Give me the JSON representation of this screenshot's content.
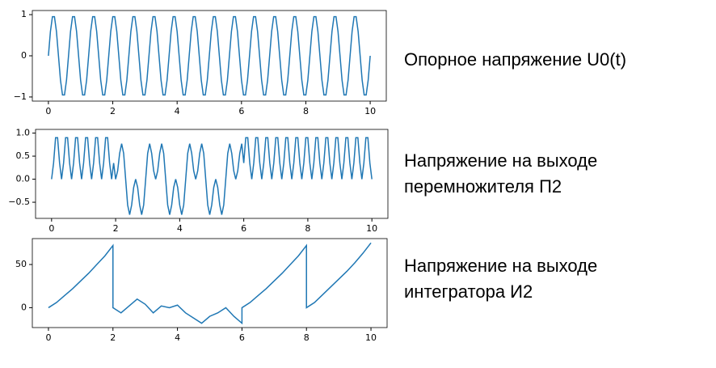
{
  "chart_data": [
    {
      "type": "line",
      "annotation_lines": [
        "Опорное напряжение U0(t)"
      ],
      "color": "#1f77b4",
      "xlim": [
        -0.5,
        10.5
      ],
      "ylim": [
        -1.1,
        1.1
      ],
      "xticks": [
        0,
        2,
        4,
        6,
        8,
        10
      ],
      "yticks": [
        {
          "value": -1,
          "label": "−1"
        },
        0,
        1
      ],
      "x": [
        0,
        0.0625,
        0.125,
        0.1875,
        0.25,
        0.3125,
        0.375,
        0.4375,
        0.5,
        0.5625,
        0.625,
        0.6875,
        0.75,
        0.8125,
        0.875,
        0.9375,
        1,
        1.0625,
        1.125,
        1.1875,
        1.25,
        1.3125,
        1.375,
        1.4375,
        1.5,
        1.5625,
        1.625,
        1.6875,
        1.75,
        1.8125,
        1.875,
        1.9375,
        2,
        2.0625,
        2.125,
        2.1875,
        2.25,
        2.3125,
        2.375,
        2.4375,
        2.5,
        2.5625,
        2.625,
        2.6875,
        2.75,
        2.8125,
        2.875,
        2.9375,
        3,
        3.0625,
        3.125,
        3.1875,
        3.25,
        3.3125,
        3.375,
        3.4375,
        3.5,
        3.5625,
        3.625,
        3.6875,
        3.75,
        3.8125,
        3.875,
        3.9375,
        4,
        4.0625,
        4.125,
        4.1875,
        4.25,
        4.3125,
        4.375,
        4.4375,
        4.5,
        4.5625,
        4.625,
        4.6875,
        4.75,
        4.8125,
        4.875,
        4.9375,
        5,
        5.0625,
        5.125,
        5.1875,
        5.25,
        5.3125,
        5.375,
        5.4375,
        5.5,
        5.5625,
        5.625,
        5.6875,
        5.75,
        5.8125,
        5.875,
        5.9375,
        6,
        6.0625,
        6.125,
        6.1875,
        6.25,
        6.3125,
        6.375,
        6.4375,
        6.5,
        6.5625,
        6.625,
        6.6875,
        6.75,
        6.8125,
        6.875,
        6.9375,
        7,
        7.0625,
        7.125,
        7.1875,
        7.25,
        7.3125,
        7.375,
        7.4375,
        7.5,
        7.5625,
        7.625,
        7.6875,
        7.75,
        7.8125,
        7.875,
        7.9375,
        8,
        8.0625,
        8.125,
        8.1875,
        8.25,
        8.3125,
        8.375,
        8.4375,
        8.5,
        8.5625,
        8.625,
        8.6875,
        8.75,
        8.8125,
        8.875,
        8.9375,
        9,
        9.0625,
        9.125,
        9.1875,
        9.25,
        9.3125,
        9.375,
        9.4375,
        9.5,
        9.5625,
        9.625,
        9.6875,
        9.75,
        9.8125,
        9.875,
        9.9375,
        10
      ],
      "values": [
        0,
        0.59,
        0.95,
        0.95,
        0.59,
        0,
        -0.59,
        -0.95,
        -0.95,
        -0.59,
        0,
        0.59,
        0.95,
        0.95,
        0.59,
        0,
        -0.59,
        -0.95,
        -0.95,
        -0.59,
        0,
        0.59,
        0.95,
        0.95,
        0.59,
        0,
        -0.59,
        -0.95,
        -0.95,
        -0.59,
        0,
        0.59,
        0.95,
        0.95,
        0.59,
        0,
        -0.59,
        -0.95,
        -0.95,
        -0.59,
        0,
        0.59,
        0.95,
        0.95,
        0.59,
        0,
        -0.59,
        -0.95,
        -0.95,
        -0.59,
        0,
        0.59,
        0.95,
        0.95,
        0.59,
        0,
        -0.59,
        -0.95,
        -0.95,
        -0.59,
        0,
        0.59,
        0.95,
        0.95,
        0.59,
        0,
        -0.59,
        -0.95,
        -0.95,
        -0.59,
        0,
        0.59,
        0.95,
        0.95,
        0.59,
        0,
        -0.59,
        -0.95,
        -0.95,
        -0.59,
        0,
        0.59,
        0.95,
        0.95,
        0.59,
        0,
        -0.59,
        -0.95,
        -0.95,
        -0.59,
        0,
        0.59,
        0.95,
        0.95,
        0.59,
        0,
        -0.59,
        -0.95,
        -0.95,
        -0.59,
        0,
        0.59,
        0.95,
        0.95,
        0.59,
        0,
        -0.59,
        -0.95,
        -0.95,
        -0.59,
        0,
        0.59,
        0.95,
        0.95,
        0.59,
        0,
        -0.59,
        -0.95,
        -0.95,
        -0.59,
        0,
        0.59,
        0.95,
        0.95,
        0.59,
        0,
        -0.59,
        -0.95,
        -0.95,
        -0.59,
        0,
        0.59,
        0.95,
        0.95,
        0.59,
        0,
        -0.59,
        -0.95,
        -0.95,
        -0.59,
        0,
        0.59,
        0.95,
        0.95,
        0.59,
        0,
        -0.59,
        -0.95,
        -0.95,
        -0.59,
        0,
        0.59,
        0.95,
        0.95,
        0.59,
        0,
        -0.59,
        -0.95,
        -0.95,
        -0.59,
        0
      ]
    },
    {
      "type": "line",
      "annotation_lines": [
        "Напряжение на выходе",
        "перемножителя П2"
      ],
      "color": "#1f77b4",
      "xlim": [
        -0.5,
        10.5
      ],
      "ylim": [
        -0.85,
        1.08
      ],
      "xticks": [
        0,
        2,
        4,
        6,
        8,
        10
      ],
      "yticks": [
        {
          "value": -0.5,
          "label": "−0.5"
        },
        {
          "value": 0,
          "label": "0.0"
        },
        0.5,
        {
          "value": 1,
          "label": "1.0"
        }
      ],
      "x": [
        0,
        0.0625,
        0.125,
        0.1875,
        0.25,
        0.3125,
        0.375,
        0.4375,
        0.5,
        0.5625,
        0.625,
        0.6875,
        0.75,
        0.8125,
        0.875,
        0.9375,
        1,
        1.0625,
        1.125,
        1.1875,
        1.25,
        1.3125,
        1.375,
        1.4375,
        1.5,
        1.5625,
        1.625,
        1.6875,
        1.75,
        1.8125,
        1.875,
        1.9375,
        2,
        2.0625,
        2.125,
        2.1875,
        2.25,
        2.3125,
        2.375,
        2.4375,
        2.5,
        2.5625,
        2.625,
        2.6875,
        2.75,
        2.8125,
        2.875,
        2.9375,
        3,
        3.0625,
        3.125,
        3.1875,
        3.25,
        3.3125,
        3.375,
        3.4375,
        3.5,
        3.5625,
        3.625,
        3.6875,
        3.75,
        3.8125,
        3.875,
        3.9375,
        4,
        4.0625,
        4.125,
        4.1875,
        4.25,
        4.3125,
        4.375,
        4.4375,
        4.5,
        4.5625,
        4.625,
        4.6875,
        4.75,
        4.8125,
        4.875,
        4.9375,
        5,
        5.0625,
        5.125,
        5.1875,
        5.25,
        5.3125,
        5.375,
        5.4375,
        5.5,
        5.5625,
        5.625,
        5.6875,
        5.75,
        5.8125,
        5.875,
        5.9375,
        6,
        6.0625,
        6.125,
        6.1875,
        6.25,
        6.3125,
        6.375,
        6.4375,
        6.5,
        6.5625,
        6.625,
        6.6875,
        6.75,
        6.8125,
        6.875,
        6.9375,
        7,
        7.0625,
        7.125,
        7.1875,
        7.25,
        7.3125,
        7.375,
        7.4375,
        7.5,
        7.5625,
        7.625,
        7.6875,
        7.75,
        7.8125,
        7.875,
        7.9375,
        8,
        8.0625,
        8.125,
        8.1875,
        8.25,
        8.3125,
        8.375,
        8.4375,
        8.5,
        8.5625,
        8.625,
        8.6875,
        8.75,
        8.8125,
        8.875,
        8.9375,
        9,
        9.0625,
        9.125,
        9.1875,
        9.25,
        9.3125,
        9.375,
        9.4375,
        9.5,
        9.5625,
        9.625,
        9.6875,
        9.75,
        9.8125,
        9.875,
        9.9375,
        10
      ],
      "values": [
        0,
        0.35,
        0.9,
        0.9,
        0.35,
        0,
        0.35,
        0.9,
        0.9,
        0.35,
        0,
        0.35,
        0.9,
        0.9,
        0.35,
        0,
        0.35,
        0.9,
        0.9,
        0.35,
        0,
        0.35,
        0.9,
        0.9,
        0.35,
        0,
        0.35,
        0.9,
        0.9,
        0.35,
        0,
        0.35,
        0,
        0.18,
        0.56,
        0.77,
        0.56,
        0,
        -0.56,
        -0.77,
        -0.56,
        -0.18,
        0,
        -0.18,
        -0.56,
        -0.77,
        -0.56,
        0,
        0.56,
        0.77,
        0.56,
        0.18,
        0,
        0.18,
        0.56,
        0.77,
        0.56,
        0,
        -0.56,
        -0.77,
        -0.56,
        -0.18,
        0,
        -0.18,
        -0.56,
        -0.77,
        -0.56,
        0,
        0.56,
        0.77,
        0.56,
        0.18,
        0,
        0.18,
        0.56,
        0.77,
        0.56,
        0,
        -0.56,
        -0.77,
        -0.56,
        -0.18,
        0,
        -0.18,
        -0.56,
        -0.77,
        -0.56,
        0,
        0.56,
        0.77,
        0.56,
        0.18,
        0,
        0.18,
        0.56,
        0.77,
        0.35,
        0.9,
        0.9,
        0.35,
        0,
        0.35,
        0.9,
        0.9,
        0.35,
        0,
        0.35,
        0.9,
        0.9,
        0.35,
        0,
        0.35,
        0.9,
        0.9,
        0.35,
        0,
        0.35,
        0.9,
        0.9,
        0.35,
        0,
        0.35,
        0.9,
        0.9,
        0.35,
        0,
        0.35,
        0.9,
        0.9,
        0.35,
        0,
        0.35,
        0.9,
        0.9,
        0.35,
        0,
        0.35,
        0.9,
        0.9,
        0.35,
        0,
        0.35,
        0.9,
        0.9,
        0.35,
        0,
        0.35,
        0.9,
        0.9,
        0.35,
        0,
        0.35,
        0.9,
        0.9,
        0.35,
        0,
        0.35,
        0.9,
        0.9,
        0.35,
        0
      ]
    },
    {
      "type": "line",
      "annotation_lines": [
        "Напряжение на выходе",
        "интегратора И2"
      ],
      "color": "#1f77b4",
      "xlim": [
        -0.5,
        10.5
      ],
      "ylim": [
        -23,
        80
      ],
      "xticks": [
        0,
        2,
        4,
        6,
        8,
        10
      ],
      "yticks": [
        0,
        50
      ],
      "x": [
        0,
        0.25,
        0.5,
        0.75,
        1,
        1.25,
        1.5,
        1.75,
        2,
        2,
        2.25,
        2.5,
        2.75,
        3,
        3.25,
        3.5,
        3.75,
        4,
        4.25,
        4.5,
        4.75,
        5,
        5.25,
        5.5,
        5.75,
        6,
        6,
        6.25,
        6.5,
        6.75,
        7,
        7.25,
        7.5,
        7.75,
        8,
        8,
        8.25,
        8.5,
        8.75,
        9,
        9.25,
        9.5,
        9.75,
        10
      ],
      "values": [
        0,
        6,
        14,
        22,
        31,
        40,
        50,
        60,
        72,
        0,
        -6,
        2,
        10,
        4,
        -6,
        2,
        0,
        3,
        -6,
        -12,
        -18,
        -10,
        -6,
        0,
        -10,
        -18,
        0,
        6,
        14,
        22,
        31,
        40,
        50,
        60,
        72,
        0,
        6,
        15,
        24,
        33,
        42,
        52,
        63,
        75
      ]
    }
  ]
}
